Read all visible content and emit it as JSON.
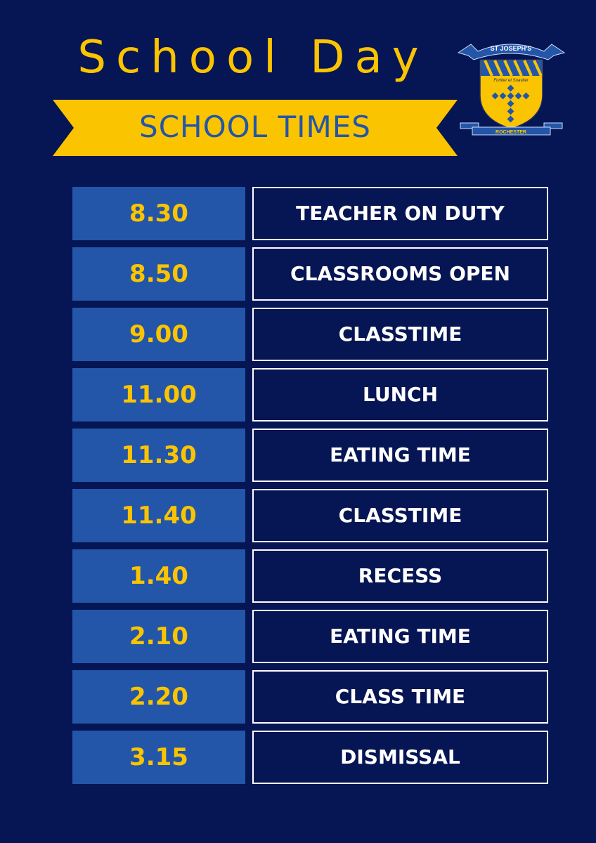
{
  "header": {
    "title": "School Day",
    "banner": "SCHOOL TIMES"
  },
  "logo": {
    "top_ribbon": "ST JOSEPH'S",
    "motto": "Fortiter et Suaviter",
    "bottom_ribbon": "ROCHESTER"
  },
  "colors": {
    "background": "#061553",
    "accent_yellow": "#FBC400",
    "time_box_blue": "#2356A8"
  },
  "schedule": [
    {
      "time": "8.30",
      "activity": "TEACHER ON DUTY"
    },
    {
      "time": "8.50",
      "activity": "CLASSROOMS OPEN"
    },
    {
      "time": "9.00",
      "activity": "CLASSTIME"
    },
    {
      "time": "11.00",
      "activity": "LUNCH"
    },
    {
      "time": "11.30",
      "activity": "EATING TIME"
    },
    {
      "time": "11.40",
      "activity": "CLASSTIME"
    },
    {
      "time": "1.40",
      "activity": "RECESS"
    },
    {
      "time": "2.10",
      "activity": "EATING TIME"
    },
    {
      "time": "2.20",
      "activity": "CLASS TIME"
    },
    {
      "time": "3.15",
      "activity": "DISMISSAL"
    }
  ]
}
